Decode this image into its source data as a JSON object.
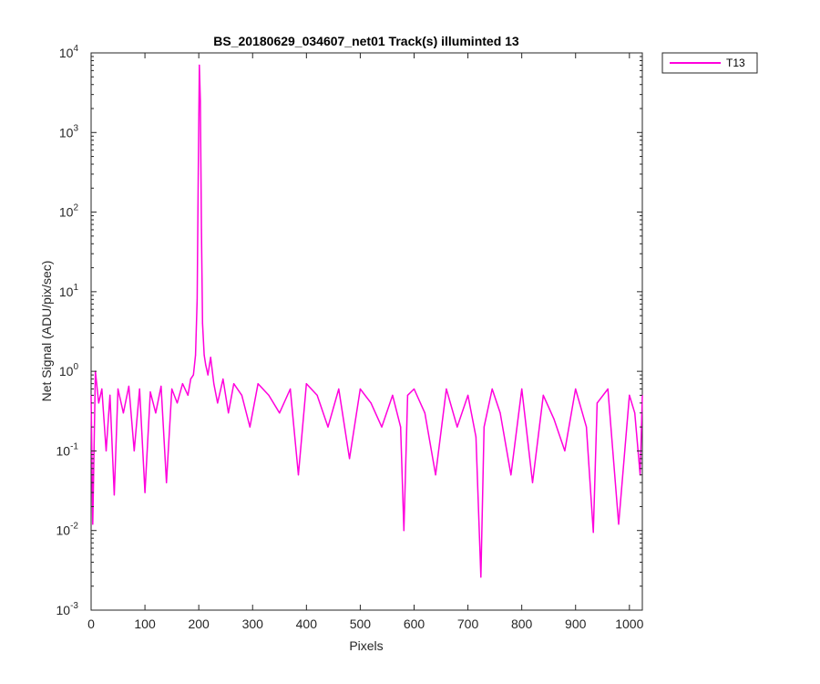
{
  "chart_data": {
    "type": "line",
    "title": "BS_20180629_034607_net01  Track(s) illuminted 13",
    "xlabel": "Pixels",
    "ylabel": "Net Signal (ADU/pix/sec)",
    "xlim": [
      0,
      1024
    ],
    "ylim": [
      0.001,
      10000
    ],
    "yscale": "log",
    "x_ticks": [
      0,
      100,
      200,
      300,
      400,
      500,
      600,
      700,
      800,
      900,
      1000
    ],
    "y_ticks": [
      {
        "exp": "-3",
        "base": "10"
      },
      {
        "exp": "-2",
        "base": "10"
      },
      {
        "exp": "-1",
        "base": "10"
      },
      {
        "exp": "0",
        "base": "10"
      },
      {
        "exp": "1",
        "base": "10"
      },
      {
        "exp": "2",
        "base": "10"
      },
      {
        "exp": "3",
        "base": "10"
      },
      {
        "exp": "4",
        "base": "10"
      }
    ],
    "grid": false,
    "legend_position": "outside-top-right",
    "series": [
      {
        "name": "T13",
        "color": "#ff00dd",
        "x": [
          0,
          3,
          8,
          14,
          20,
          28,
          35,
          43,
          50,
          60,
          70,
          80,
          90,
          100,
          110,
          120,
          130,
          140,
          150,
          160,
          170,
          180,
          185,
          190,
          194,
          197,
          199,
          201,
          203,
          205,
          207,
          210,
          213,
          217,
          222,
          228,
          235,
          245,
          255,
          265,
          280,
          295,
          310,
          330,
          350,
          370,
          385,
          400,
          420,
          440,
          460,
          480,
          500,
          520,
          540,
          560,
          575,
          581,
          588,
          600,
          620,
          640,
          660,
          680,
          700,
          715,
          724,
          730,
          745,
          760,
          780,
          800,
          820,
          840,
          860,
          880,
          900,
          920,
          933,
          940,
          960,
          980,
          1000,
          1010,
          1020,
          1024
        ],
        "values": [
          0.5,
          0.012,
          1.0,
          0.4,
          0.6,
          0.1,
          0.5,
          0.028,
          0.6,
          0.3,
          0.65,
          0.1,
          0.6,
          0.03,
          0.55,
          0.3,
          0.65,
          0.04,
          0.6,
          0.4,
          0.7,
          0.5,
          0.8,
          0.9,
          1.6,
          8,
          300,
          7000,
          2500,
          60,
          4,
          1.6,
          1.2,
          0.9,
          1.5,
          0.7,
          0.4,
          0.8,
          0.3,
          0.7,
          0.5,
          0.2,
          0.7,
          0.5,
          0.3,
          0.6,
          0.05,
          0.7,
          0.5,
          0.2,
          0.6,
          0.08,
          0.6,
          0.4,
          0.2,
          0.5,
          0.2,
          0.01,
          0.5,
          0.6,
          0.3,
          0.05,
          0.6,
          0.2,
          0.5,
          0.15,
          0.0026,
          0.2,
          0.6,
          0.3,
          0.05,
          0.6,
          0.04,
          0.5,
          0.25,
          0.1,
          0.6,
          0.2,
          0.0095,
          0.4,
          0.6,
          0.012,
          0.5,
          0.3,
          0.05,
          0.5
        ]
      }
    ]
  }
}
